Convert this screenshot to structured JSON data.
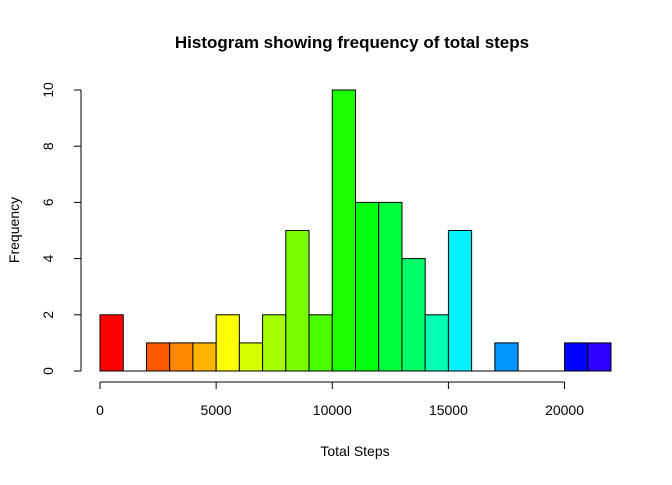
{
  "chart_data": {
    "type": "bar",
    "title": "Histogram showing frequency of total steps",
    "xlabel": "Total Steps",
    "ylabel": "Frequency",
    "bin_width": 1000,
    "bins": [
      {
        "start": 0,
        "end": 1000,
        "count": 2,
        "color": "#FF0000"
      },
      {
        "start": 1000,
        "end": 2000,
        "count": 0,
        "color": "#FF2D00"
      },
      {
        "start": 2000,
        "end": 3000,
        "count": 1,
        "color": "#FF5A00"
      },
      {
        "start": 3000,
        "end": 4000,
        "count": 1,
        "color": "#FF8800"
      },
      {
        "start": 4000,
        "end": 5000,
        "count": 1,
        "color": "#FFB500"
      },
      {
        "start": 5000,
        "end": 6000,
        "count": 2,
        "color": "#FFFF00"
      },
      {
        "start": 6000,
        "end": 7000,
        "count": 1,
        "color": "#D4FF00"
      },
      {
        "start": 7000,
        "end": 8000,
        "count": 2,
        "color": "#A6FF00"
      },
      {
        "start": 8000,
        "end": 9000,
        "count": 5,
        "color": "#79FF00"
      },
      {
        "start": 9000,
        "end": 10000,
        "count": 2,
        "color": "#4CFF00"
      },
      {
        "start": 10000,
        "end": 11000,
        "count": 10,
        "color": "#1EFF00"
      },
      {
        "start": 11000,
        "end": 12000,
        "count": 6,
        "color": "#00FF0F"
      },
      {
        "start": 12000,
        "end": 13000,
        "count": 6,
        "color": "#00FF3C"
      },
      {
        "start": 13000,
        "end": 14000,
        "count": 4,
        "color": "#00FF69"
      },
      {
        "start": 14000,
        "end": 15000,
        "count": 2,
        "color": "#00FFB4"
      },
      {
        "start": 15000,
        "end": 16000,
        "count": 5,
        "color": "#00F0FF"
      },
      {
        "start": 16000,
        "end": 17000,
        "count": 0,
        "color": "#00C3FF"
      },
      {
        "start": 17000,
        "end": 18000,
        "count": 1,
        "color": "#0096FF"
      },
      {
        "start": 18000,
        "end": 19000,
        "count": 0,
        "color": "#0069FF"
      },
      {
        "start": 19000,
        "end": 20000,
        "count": 0,
        "color": "#003CFF"
      },
      {
        "start": 20000,
        "end": 21000,
        "count": 1,
        "color": "#0000FF"
      },
      {
        "start": 21000,
        "end": 22000,
        "count": 1,
        "color": "#2D00FF"
      }
    ],
    "xlim": [
      0,
      22000
    ],
    "ylim": [
      0,
      10
    ],
    "x_ticks": [
      0,
      5000,
      10000,
      15000,
      20000
    ],
    "y_ticks": [
      0,
      2,
      4,
      6,
      8,
      10
    ],
    "grid": false,
    "legend": "none",
    "bar_border_color": "#000000",
    "axis_color": "#000000"
  }
}
